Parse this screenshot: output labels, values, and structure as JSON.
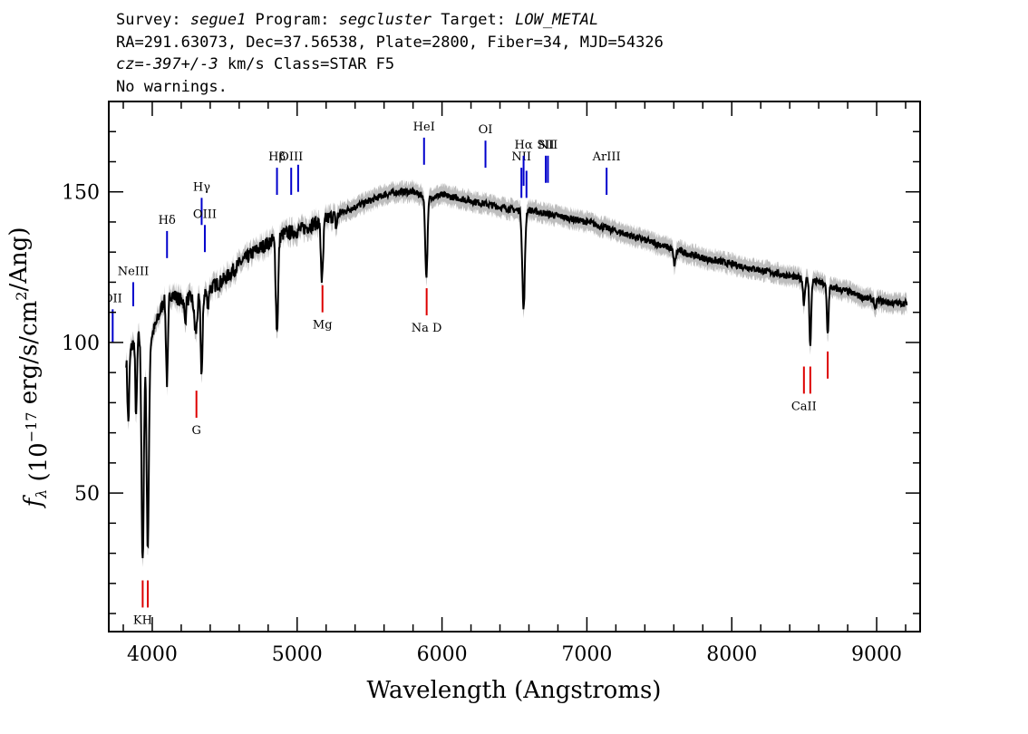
{
  "header": {
    "line1": {
      "survey_label": "Survey: ",
      "survey": "segue1",
      "program_label": " Program: ",
      "program": "segcluster",
      "target_label": " Target: ",
      "target": "LOW_METAL"
    },
    "line2": "RA=291.63073, Dec=37.56538, Plate=2800, Fiber=34, MJD=54326",
    "line3": {
      "cz": "cz=-397+/-3",
      "rest": " km/s Class=STAR F5"
    },
    "line4": "No warnings."
  },
  "colors": {
    "spectrum": "#000000",
    "error_band": "#bdbdbd",
    "emission": "#0000cc",
    "absorption": "#dd0000",
    "axes": "#000000"
  },
  "chart_data": {
    "type": "line",
    "xlabel": "Wavelength (Angstroms)",
    "ylabel": "f_λ (10^-17 erg/s/cm^2/Ang)",
    "xlim": [
      3700,
      9300
    ],
    "ylim": [
      4,
      180
    ],
    "xticks": [
      4000,
      5000,
      6000,
      7000,
      8000,
      9000
    ],
    "yticks": [
      50,
      100,
      150
    ],
    "continuum": {
      "x": [
        3830,
        3870,
        3920,
        3980,
        4040,
        4100,
        4200,
        4300,
        4400,
        4500,
        4600,
        4700,
        4800,
        4900,
        5000,
        5100,
        5200,
        5300,
        5400,
        5500,
        5600,
        5700,
        5800,
        5900,
        6000,
        6100,
        6200,
        6300,
        6400,
        6500,
        6600,
        6700,
        6800,
        6900,
        7000,
        7200,
        7400,
        7600,
        7800,
        8000,
        8200,
        8400,
        8500,
        8600,
        8700,
        8800,
        8900,
        9000,
        9100,
        9200
      ],
      "y": [
        95,
        100,
        103,
        100,
        108,
        117,
        114,
        115,
        118,
        121,
        126,
        130,
        133,
        136,
        137,
        139,
        141,
        143,
        145,
        147,
        149,
        150,
        150,
        148,
        149,
        148,
        147,
        146,
        145,
        144,
        144,
        143,
        142,
        141,
        140,
        137,
        134,
        131,
        128,
        126,
        124,
        122,
        121,
        120,
        118,
        117,
        115,
        114,
        113,
        113
      ]
    },
    "absorption_features": [
      {
        "x": 3835,
        "depth": 22,
        "width": 6
      },
      {
        "x": 3889,
        "depth": 25,
        "width": 6
      },
      {
        "x": 3934,
        "depth": 76,
        "width": 8
      },
      {
        "x": 3969,
        "depth": 68,
        "width": 8
      },
      {
        "x": 4102,
        "depth": 30,
        "width": 7
      },
      {
        "x": 4227,
        "depth": 8,
        "width": 5
      },
      {
        "x": 4300,
        "depth": 12,
        "width": 10
      },
      {
        "x": 4341,
        "depth": 26,
        "width": 7
      },
      {
        "x": 4383,
        "depth": 6,
        "width": 5
      },
      {
        "x": 4861,
        "depth": 31,
        "width": 8
      },
      {
        "x": 5172,
        "depth": 20,
        "width": 8
      },
      {
        "x": 5270,
        "depth": 4,
        "width": 6
      },
      {
        "x": 5892,
        "depth": 26,
        "width": 8
      },
      {
        "x": 6563,
        "depth": 33,
        "width": 9
      },
      {
        "x": 7605,
        "depth": 5,
        "width": 8
      },
      {
        "x": 8498,
        "depth": 8,
        "width": 6
      },
      {
        "x": 8542,
        "depth": 22,
        "width": 6
      },
      {
        "x": 8662,
        "depth": 16,
        "width": 6
      },
      {
        "x": 8990,
        "depth": 4,
        "width": 5
      }
    ],
    "error_halfwidth": 3,
    "emission_lines": [
      {
        "label": "OII",
        "x": 3727,
        "y": 100,
        "len": 11
      },
      {
        "label": "NeIII",
        "x": 3869,
        "y": 112,
        "len": 8
      },
      {
        "label": "Hδ",
        "x": 4102,
        "y": 128,
        "len": 9
      },
      {
        "label": "Hγ",
        "x": 4341,
        "y": 139,
        "len": 9
      },
      {
        "label": "OIII",
        "x": 4363,
        "y": 130,
        "len": 9
      },
      {
        "label": "Hβ",
        "x": 4861,
        "y": 149,
        "len": 9
      },
      {
        "label": "OIII",
        "x": 4959,
        "y": 149,
        "len": 9
      },
      {
        "label": "",
        "x": 5007,
        "y": 150,
        "len": 9
      },
      {
        "label": "HeI",
        "x": 5876,
        "y": 159,
        "len": 9
      },
      {
        "label": "OI",
        "x": 6300,
        "y": 158,
        "len": 9
      },
      {
        "label": "NII",
        "x": 6548,
        "y": 148,
        "len": 10
      },
      {
        "label": "Hα",
        "x": 6563,
        "y": 152,
        "len": 10
      },
      {
        "label": "",
        "x": 6583,
        "y": 148,
        "len": 9
      },
      {
        "label": "SII",
        "x": 6716,
        "y": 153,
        "len": 9
      },
      {
        "label": "NII",
        "x": 6731,
        "y": 153,
        "len": 9
      },
      {
        "label": "ArIII",
        "x": 7136,
        "y": 149,
        "len": 9
      }
    ],
    "absorption_lines": [
      {
        "label": "KH",
        "x": 3934,
        "y": 12,
        "len": 9
      },
      {
        "label": "",
        "x": 3969,
        "y": 12,
        "len": 9
      },
      {
        "label": "G",
        "x": 4305,
        "y": 75,
        "len": 9
      },
      {
        "label": "Mg",
        "x": 5175,
        "y": 110,
        "len": 9
      },
      {
        "label": "Na D",
        "x": 5894,
        "y": 109,
        "len": 9
      },
      {
        "label": "CaII",
        "x": 8498,
        "y": 83,
        "len": 9
      },
      {
        "label": "",
        "x": 8542,
        "y": 83,
        "len": 9
      },
      {
        "label": "",
        "x": 8662,
        "y": 88,
        "len": 9
      }
    ]
  }
}
